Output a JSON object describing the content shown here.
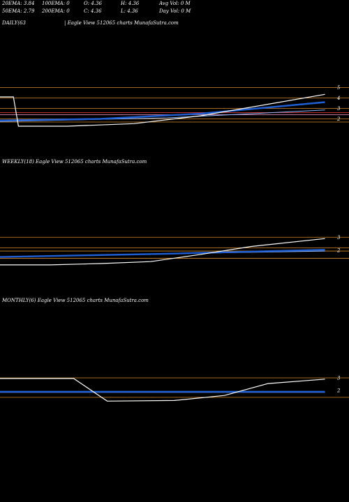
{
  "header": {
    "row1": [
      "20EMA: 3.84",
      "100EMA: 0",
      "O: 4.36",
      "H: 4.36",
      "Avg Vol: 0  M"
    ],
    "row2": [
      "50EMA: 2.79",
      "200EMA: 0",
      "C: 4.36",
      "L: 4.36",
      "Day Vol: 0  M"
    ]
  },
  "colors": {
    "background": "#000000",
    "price_line": "#ffffff",
    "ema_blue": "#1f5fd6",
    "ema_lightblue": "#8fb8ff",
    "hline_orange": "#d98a2b",
    "hline_red": "#ff4040",
    "hline_pink": "#ff9fd0"
  },
  "chart_data": [
    {
      "type": "line",
      "title": "DAILY(63",
      "subtitle": "| Eagle  View  512065 charts MunafaSutra.com",
      "ylim": [
        1.5,
        5.5
      ],
      "ticks": [
        5,
        4,
        3,
        2
      ],
      "hlines": [
        {
          "y": 5.0,
          "color": "orange"
        },
        {
          "y": 4.0,
          "color": "orange"
        },
        {
          "y": 3.0,
          "color": "orange"
        },
        {
          "y": 2.0,
          "color": "orange"
        },
        {
          "y": 2.6,
          "color": "red"
        },
        {
          "y": 2.4,
          "color": "pink"
        },
        {
          "y": 1.7,
          "color": "orange"
        }
      ],
      "series": [
        {
          "role": "price",
          "x": [
            0,
            0.04,
            0.055,
            0.2,
            0.4,
            0.6,
            0.8,
            0.97
          ],
          "values": [
            4.1,
            4.1,
            1.3,
            1.3,
            1.55,
            2.3,
            3.4,
            4.35
          ]
        },
        {
          "role": "ema_fast",
          "x": [
            0,
            0.3,
            0.6,
            0.97
          ],
          "values": [
            1.85,
            2.0,
            2.5,
            3.6
          ]
        },
        {
          "role": "ema_slow",
          "x": [
            0,
            0.5,
            0.97
          ],
          "values": [
            1.75,
            2.1,
            2.85
          ]
        }
      ]
    },
    {
      "type": "line",
      "title": "WEEKLY(18) Eagle  View  512065 charts MunafaSutra.com",
      "ylim": [
        1.0,
        4.5
      ],
      "ticks": [
        3,
        2
      ],
      "hlines": [
        {
          "y": 3.0,
          "color": "orange"
        },
        {
          "y": 2.2,
          "color": "orange"
        },
        {
          "y": 1.95,
          "color": "orange"
        },
        {
          "y": 1.4,
          "color": "orange"
        }
      ],
      "series": [
        {
          "role": "price",
          "x": [
            0,
            0.15,
            0.3,
            0.45,
            0.6,
            0.75,
            0.97
          ],
          "values": [
            0.9,
            0.9,
            1.0,
            1.15,
            1.7,
            2.3,
            2.9
          ]
        },
        {
          "role": "ema_fast",
          "x": [
            0,
            0.5,
            0.97
          ],
          "values": [
            1.5,
            1.75,
            2.05
          ]
        },
        {
          "role": "ema_slow",
          "x": [
            0,
            0.5,
            0.97
          ],
          "values": [
            1.5,
            1.75,
            1.95
          ]
        }
      ]
    },
    {
      "type": "line",
      "title": "MONTHLY(6) Eagle  View  512065 charts MunafaSutra.com",
      "ylim": [
        1.0,
        4.5
      ],
      "ticks": [
        3,
        2
      ],
      "hlines": [
        {
          "y": 3.0,
          "color": "orange"
        },
        {
          "y": 1.45,
          "color": "orange"
        }
      ],
      "series": [
        {
          "role": "price",
          "x": [
            0,
            0.22,
            0.32,
            0.52,
            0.67,
            0.8,
            0.97
          ],
          "values": [
            2.95,
            2.95,
            1.15,
            1.2,
            1.6,
            2.55,
            2.9
          ]
        },
        {
          "role": "ema_fast",
          "x": [
            0,
            0.97
          ],
          "values": [
            1.9,
            1.9
          ]
        },
        {
          "role": "ema_slow",
          "x": [
            0,
            0.97
          ],
          "values": [
            1.85,
            1.85
          ]
        }
      ]
    }
  ]
}
